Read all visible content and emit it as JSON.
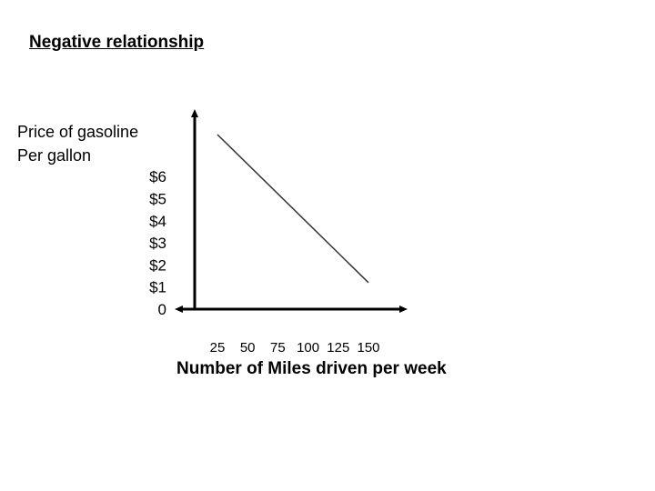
{
  "chart_data": {
    "type": "line",
    "title": "Negative relationship",
    "ylabel_lines": [
      "Price of gasoline",
      "Per gallon"
    ],
    "xlabel": "Number of Miles driven per week",
    "y_ticks": [
      "0",
      "$1",
      "$2",
      "$3",
      "$4",
      "$5",
      "$6"
    ],
    "x_ticks": [
      "25",
      "50",
      "75",
      "100",
      "125",
      "150"
    ],
    "grid": false,
    "series": [
      {
        "x": [
          25,
          150
        ],
        "y": [
          7.9,
          1.2
        ]
      }
    ],
    "line_color": "#333333",
    "axis_color": "#000000"
  }
}
